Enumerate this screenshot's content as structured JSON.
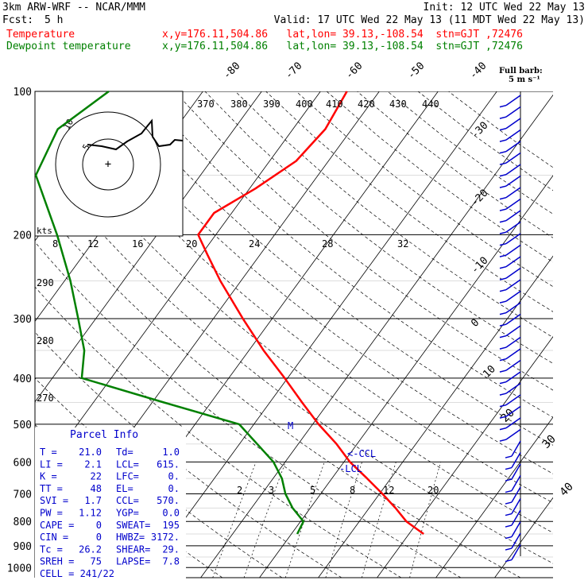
{
  "header": {
    "model": "3km ARW-WRF -- NCAR/MMM",
    "init": "Init: 12 UTC Wed 22 May 13",
    "fcst_label": "Fcst:",
    "fcst_value": "5 h",
    "valid": "Valid: 17 UTC Wed 22 May 13 (11 MDT Wed 22 May 13)",
    "temp_label": "Temperature",
    "dewp_label": "Dewpoint temperature",
    "temp_loc": "x,y=176.11,504.86   lat,lon= 39.13,-108.54  stn=GJT ,72476",
    "dewp_loc": "x,y=176.11,504.86   lat,lon= 39.13,-108.54  stn=GJT ,72476"
  },
  "colors": {
    "temperature": "#ff0000",
    "dewpoint": "#008000",
    "info": "#0000cc",
    "wind": "#0000cc"
  },
  "barb_legend": {
    "line1": "Full barb:",
    "line2": "5 m s⁻¹"
  },
  "hodograph": {
    "units": "kts",
    "ring_labels": [
      "5",
      "10"
    ]
  },
  "parcel_info": {
    "title": "Parcel Info",
    "rows": [
      {
        "k1": "T",
        "v1": "21.0",
        "k2": "Td",
        "v2": "1.0"
      },
      {
        "k1": "LI",
        "v1": "2.1",
        "k2": "LCL",
        "v2": "615."
      },
      {
        "k1": "K",
        "v1": "22",
        "k2": "LFC",
        "v2": "0."
      },
      {
        "k1": "TT",
        "v1": "48",
        "k2": "EL",
        "v2": "0."
      },
      {
        "k1": "SVI",
        "v1": "1.7",
        "k2": "CCL",
        "v2": "570."
      },
      {
        "k1": "PW",
        "v1": "1.12",
        "k2": "YGP",
        "v2": "0.0"
      },
      {
        "k1": "CAPE",
        "v1": "0",
        "k2": "SWEAT",
        "v2": "195"
      },
      {
        "k1": "CIN",
        "v1": "0",
        "k2": "HWBZ",
        "v2": "3172."
      },
      {
        "k1": "Tc",
        "v1": "26.2",
        "k2": "SHEAR",
        "v2": "29."
      },
      {
        "k1": "SREH",
        "v1": "75",
        "k2": "LAPSE",
        "v2": "7.8"
      },
      {
        "k1": "CELL",
        "v1": "241/22",
        "k2": "",
        "v2": ""
      }
    ]
  },
  "chart_data": {
    "type": "line",
    "title": "",
    "pressure_levels": [
      100,
      200,
      300,
      400,
      500,
      600,
      700,
      800,
      900,
      1000
    ],
    "isotherm_labels": [
      "-80",
      "-70",
      "-60",
      "-50",
      "-40",
      "-30",
      "-20",
      "-10",
      "0",
      "10",
      "20",
      "30",
      "40"
    ],
    "theta_e_labels": [
      "370",
      "380",
      "390",
      "400",
      "410",
      "420",
      "430",
      "440"
    ],
    "mixing_ratio_labels": [
      "2",
      "3",
      "5",
      "8",
      "12",
      "20"
    ],
    "upper_scale_labels": [
      "8",
      "12",
      "16",
      "20",
      "24",
      "28",
      "32"
    ],
    "theta_labels": [
      "290",
      "280",
      "270"
    ],
    "markers": {
      "ccl": "<-CCL",
      "lcl": "-LCL",
      "m": "M"
    },
    "temperature": [
      {
        "p": 850,
        "t": 22.5
      },
      {
        "p": 800,
        "t": 18.0
      },
      {
        "p": 750,
        "t": 14.5
      },
      {
        "p": 700,
        "t": 10.5
      },
      {
        "p": 650,
        "t": 6.0
      },
      {
        "p": 600,
        "t": 1.0
      },
      {
        "p": 550,
        "t": -3.5
      },
      {
        "p": 500,
        "t": -9.0
      },
      {
        "p": 450,
        "t": -14.5
      },
      {
        "p": 400,
        "t": -20.5
      },
      {
        "p": 350,
        "t": -27.5
      },
      {
        "p": 300,
        "t": -35.0
      },
      {
        "p": 250,
        "t": -43.5
      },
      {
        "p": 220,
        "t": -49.0
      },
      {
        "p": 200,
        "t": -53.0
      },
      {
        "p": 180,
        "t": -53.0
      },
      {
        "p": 160,
        "t": -49.0
      },
      {
        "p": 140,
        "t": -45.5
      },
      {
        "p": 120,
        "t": -44.5
      },
      {
        "p": 100,
        "t": -45.5
      }
    ],
    "dewpoint": [
      {
        "p": 850,
        "t": 1.0
      },
      {
        "p": 800,
        "t": 0.5
      },
      {
        "p": 750,
        "t": -3.0
      },
      {
        "p": 700,
        "t": -6.0
      },
      {
        "p": 650,
        "t": -8.5
      },
      {
        "p": 600,
        "t": -12.0
      },
      {
        "p": 550,
        "t": -17.0
      },
      {
        "p": 500,
        "t": -22.5
      },
      {
        "p": 450,
        "t": -38.0
      },
      {
        "p": 400,
        "t": -55.0
      },
      {
        "p": 350,
        "t": -58.0
      },
      {
        "p": 300,
        "t": -63.0
      },
      {
        "p": 250,
        "t": -69.0
      },
      {
        "p": 200,
        "t": -77.0
      },
      {
        "p": 150,
        "t": -88.0
      },
      {
        "p": 120,
        "t": -90.0
      },
      {
        "p": 100,
        "t": -86.0
      }
    ]
  }
}
